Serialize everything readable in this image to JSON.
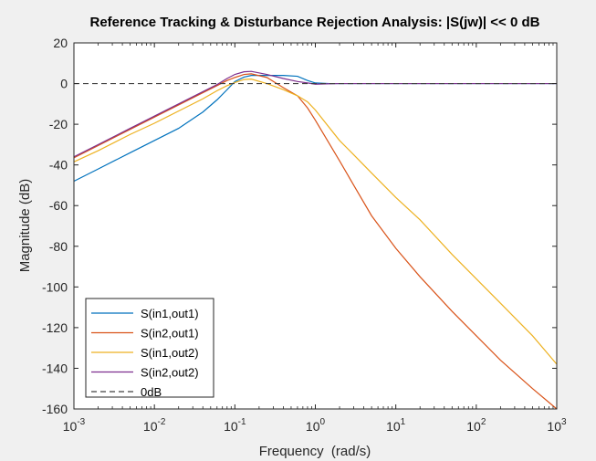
{
  "chart_data": {
    "type": "line",
    "title": "Reference Tracking & Disturbance Rejection Analysis: |S(jw)| << 0 dB",
    "xlabel": "Frequency  (rad/s)",
    "ylabel": "Magnitude (dB)",
    "xscale": "log",
    "xlim": [
      0.001,
      1000
    ],
    "ylim": [
      -160,
      20
    ],
    "x_ticks": [
      {
        "value": 0.001,
        "base": "10",
        "exp": "-3"
      },
      {
        "value": 0.01,
        "base": "10",
        "exp": "-2"
      },
      {
        "value": 0.1,
        "base": "10",
        "exp": "-1"
      },
      {
        "value": 1,
        "base": "10",
        "exp": "0"
      },
      {
        "value": 10,
        "base": "10",
        "exp": "1"
      },
      {
        "value": 100,
        "base": "10",
        "exp": "2"
      },
      {
        "value": 1000,
        "base": "10",
        "exp": "3"
      }
    ],
    "y_ticks": [
      20,
      0,
      -20,
      -40,
      -60,
      -80,
      -100,
      -120,
      -140,
      -160
    ],
    "grid": false,
    "legend_position": "bottom-left",
    "series": [
      {
        "name": "S(in1,out1)",
        "color": "#0072bd",
        "dash": "solid",
        "points": [
          [
            0.001,
            -48
          ],
          [
            0.002,
            -42
          ],
          [
            0.005,
            -34
          ],
          [
            0.01,
            -28
          ],
          [
            0.02,
            -22
          ],
          [
            0.04,
            -14
          ],
          [
            0.06,
            -8
          ],
          [
            0.08,
            -3
          ],
          [
            0.1,
            1
          ],
          [
            0.13,
            3.2
          ],
          [
            0.16,
            4
          ],
          [
            0.25,
            4
          ],
          [
            0.4,
            4
          ],
          [
            0.6,
            3.6
          ],
          [
            0.8,
            1.5
          ],
          [
            1,
            0.3
          ],
          [
            1.5,
            0
          ],
          [
            2,
            0
          ],
          [
            1000,
            0
          ]
        ]
      },
      {
        "name": "S(in2,out1)",
        "color": "#d95319",
        "dash": "solid",
        "points": [
          [
            0.001,
            -36.5
          ],
          [
            0.002,
            -30.5
          ],
          [
            0.005,
            -22.5
          ],
          [
            0.01,
            -16.5
          ],
          [
            0.02,
            -10.5
          ],
          [
            0.04,
            -4.5
          ],
          [
            0.06,
            -1
          ],
          [
            0.08,
            1.5
          ],
          [
            0.1,
            3
          ],
          [
            0.13,
            4.5
          ],
          [
            0.16,
            4.8
          ],
          [
            0.25,
            3
          ],
          [
            0.4,
            -2
          ],
          [
            0.6,
            -6
          ],
          [
            0.8,
            -12
          ],
          [
            1,
            -18
          ],
          [
            2,
            -38
          ],
          [
            3,
            -50
          ],
          [
            5,
            -65
          ],
          [
            10,
            -81
          ],
          [
            20,
            -95
          ],
          [
            50,
            -112
          ],
          [
            100,
            -124
          ],
          [
            200,
            -136
          ],
          [
            500,
            -150
          ],
          [
            1000,
            -160
          ]
        ]
      },
      {
        "name": "S(in1,out2)",
        "color": "#edb120",
        "dash": "solid",
        "points": [
          [
            0.001,
            -38.5
          ],
          [
            0.002,
            -33
          ],
          [
            0.005,
            -25
          ],
          [
            0.01,
            -19.5
          ],
          [
            0.02,
            -13.5
          ],
          [
            0.04,
            -7.5
          ],
          [
            0.06,
            -3.5
          ],
          [
            0.08,
            -1
          ],
          [
            0.1,
            0.5
          ],
          [
            0.13,
            2
          ],
          [
            0.16,
            2.2
          ],
          [
            0.25,
            0
          ],
          [
            0.4,
            -3
          ],
          [
            0.6,
            -6
          ],
          [
            0.8,
            -9
          ],
          [
            1,
            -13
          ],
          [
            2,
            -28
          ],
          [
            3,
            -35
          ],
          [
            5,
            -44
          ],
          [
            10,
            -56
          ],
          [
            20,
            -67
          ],
          [
            50,
            -84
          ],
          [
            100,
            -96
          ],
          [
            200,
            -108
          ],
          [
            500,
            -124
          ],
          [
            1000,
            -138
          ]
        ]
      },
      {
        "name": "S(in2,out2)",
        "color": "#7e2f8e",
        "dash": "solid",
        "points": [
          [
            0.001,
            -36
          ],
          [
            0.002,
            -30
          ],
          [
            0.005,
            -22
          ],
          [
            0.01,
            -16
          ],
          [
            0.02,
            -10
          ],
          [
            0.04,
            -4
          ],
          [
            0.06,
            -0.5
          ],
          [
            0.08,
            2.5
          ],
          [
            0.1,
            4.5
          ],
          [
            0.13,
            5.8
          ],
          [
            0.16,
            6
          ],
          [
            0.25,
            4.5
          ],
          [
            0.4,
            2.5
          ],
          [
            0.6,
            1
          ],
          [
            0.8,
            0.3
          ],
          [
            1,
            -0.3
          ],
          [
            1.5,
            -0.1
          ],
          [
            2,
            0
          ],
          [
            1000,
            0
          ]
        ]
      },
      {
        "name": "0dB",
        "color": "#404040",
        "dash": "dashed",
        "points": [
          [
            0.001,
            0
          ],
          [
            1000,
            0
          ]
        ]
      }
    ]
  }
}
